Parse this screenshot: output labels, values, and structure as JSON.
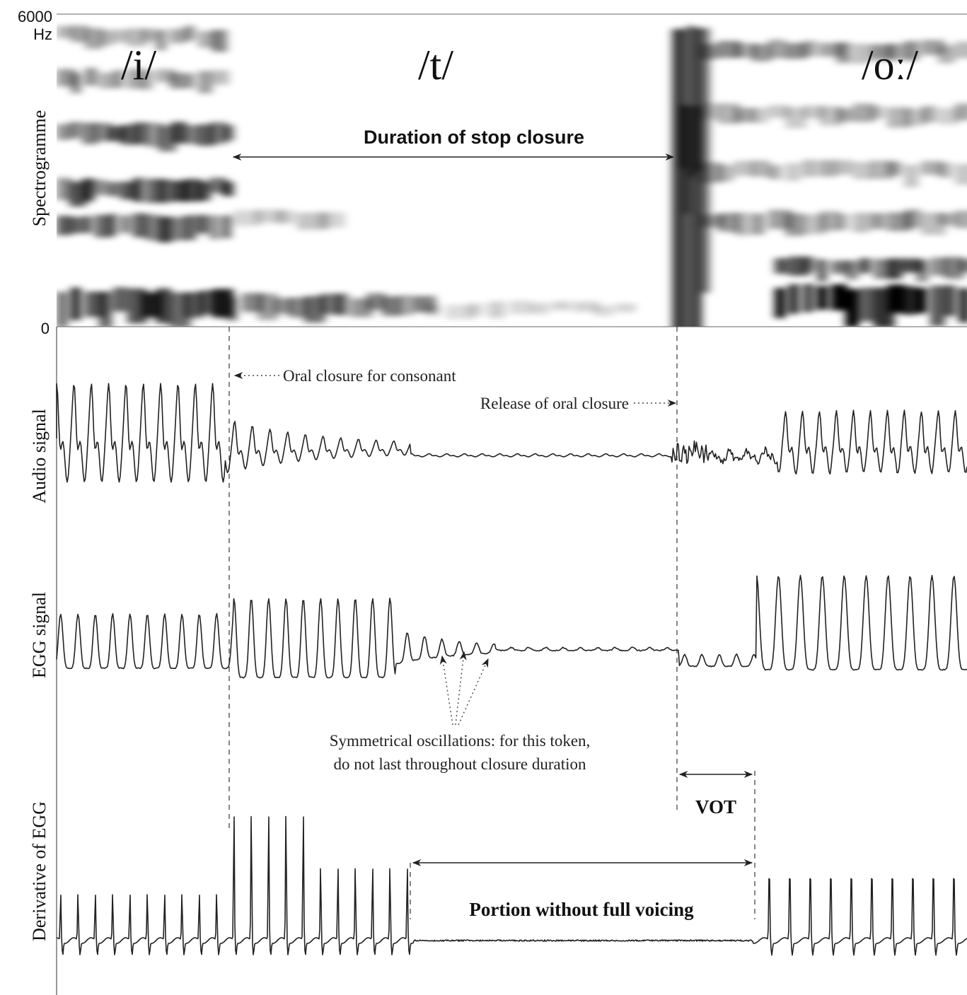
{
  "spectrogram": {
    "y_label": "Spectrogramme",
    "y_top_tick": "6000",
    "y_top_unit": "Hz",
    "y_bottom_tick": "0",
    "phonemes": [
      "/i/",
      "/t/",
      "/oː/"
    ],
    "closure_label": "Duration of stop closure"
  },
  "audio": {
    "y_label": "Audio signal",
    "oral_closure_label": "Oral closure for consonant",
    "release_label": "Release of oral closure"
  },
  "egg": {
    "y_label": "EGG signal",
    "oscillation_note_line1": "Symmetrical oscillations: for this token,",
    "oscillation_note_line2": "do not last throughout closure duration",
    "vot_label": "VOT"
  },
  "degg": {
    "y_label": "Derivative of EGG",
    "portion_label": "Portion without full voicing"
  },
  "colors": {
    "ink": "#222222",
    "background": "#ffffff"
  }
}
